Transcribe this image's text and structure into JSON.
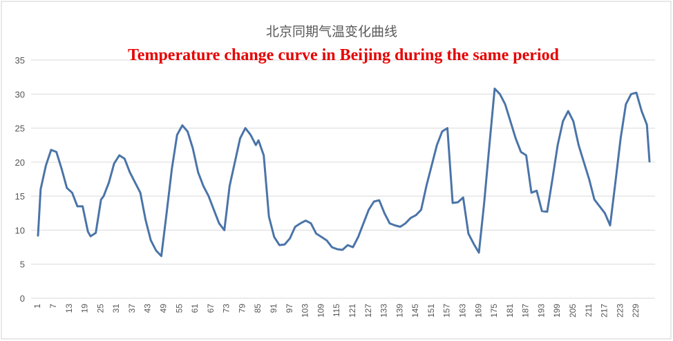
{
  "chart_data": {
    "type": "line",
    "title": "北京同期气温变化曲线",
    "subtitle": "Temperature change curve in Beijing during the same period",
    "xlabel": "",
    "ylabel": "",
    "ylim": [
      0,
      35
    ],
    "yticks": [
      0,
      5,
      10,
      15,
      20,
      25,
      30,
      35
    ],
    "xticks": [
      1,
      7,
      13,
      19,
      25,
      31,
      37,
      43,
      49,
      55,
      61,
      67,
      73,
      79,
      85,
      91,
      97,
      103,
      109,
      115,
      121,
      127,
      133,
      139,
      145,
      151,
      157,
      163,
      169,
      175,
      181,
      187,
      193,
      199,
      205,
      211,
      217,
      223,
      229
    ],
    "grid": true,
    "legend": "none",
    "colors": {
      "series": "#4a74a8",
      "subtitle": "#e60000",
      "grid": "#d9d9d9"
    },
    "x": [
      1,
      2,
      4,
      6,
      8,
      10,
      12,
      14,
      16,
      18,
      20,
      21,
      23,
      25,
      26,
      28,
      30,
      32,
      34,
      36,
      38,
      40,
      42,
      44,
      46,
      48,
      50,
      52,
      54,
      56,
      58,
      60,
      62,
      64,
      66,
      68,
      70,
      72,
      74,
      76,
      78,
      80,
      82,
      84,
      85,
      87,
      89,
      91,
      93,
      95,
      97,
      99,
      101,
      103,
      105,
      107,
      109,
      111,
      113,
      115,
      117,
      119,
      121,
      123,
      125,
      127,
      129,
      131,
      133,
      135,
      137,
      139,
      141,
      143,
      145,
      147,
      149,
      151,
      153,
      155,
      157,
      159,
      161,
      163,
      165,
      167,
      169,
      171,
      173,
      175,
      177,
      179,
      181,
      183,
      185,
      187,
      189,
      191,
      193,
      195,
      197,
      199,
      201,
      203,
      205,
      207,
      209,
      211,
      213,
      215,
      217,
      219,
      221,
      223,
      225,
      227,
      229,
      231,
      233,
      234
    ],
    "values": [
      9.2,
      16.0,
      19.5,
      21.8,
      21.5,
      19.0,
      16.2,
      15.5,
      13.5,
      13.5,
      9.8,
      9.1,
      9.6,
      14.5,
      15.0,
      17.0,
      19.8,
      21.0,
      20.5,
      18.5,
      17.0,
      15.5,
      11.5,
      8.5,
      7.0,
      6.2,
      12.5,
      19.0,
      24.0,
      25.4,
      24.5,
      22.0,
      18.5,
      16.5,
      15.0,
      13.0,
      11.0,
      10.0,
      16.5,
      20.0,
      23.5,
      25.0,
      24.0,
      22.5,
      23.2,
      21.0,
      12.0,
      9.0,
      7.8,
      7.9,
      8.8,
      10.5,
      11.0,
      11.4,
      11.0,
      9.5,
      9.0,
      8.5,
      7.5,
      7.2,
      7.1,
      7.8,
      7.5,
      9.0,
      11.0,
      13.0,
      14.2,
      14.4,
      12.5,
      11.0,
      10.7,
      10.5,
      11.0,
      11.8,
      12.2,
      13.0,
      16.5,
      19.5,
      22.5,
      24.5,
      25.0,
      14.0,
      14.1,
      14.8,
      9.5,
      8.0,
      6.7,
      14.0,
      22.5,
      30.8,
      30.0,
      28.5,
      26.0,
      23.5,
      21.5,
      21.0,
      15.5,
      15.8,
      12.8,
      12.7,
      17.5,
      22.5,
      26.0,
      27.5,
      26.0,
      22.5,
      20.0,
      17.5,
      14.5,
      13.5,
      12.5,
      10.7,
      17.0,
      23.5,
      28.5,
      30.0,
      30.2,
      27.5,
      25.5,
      20.1
    ]
  }
}
